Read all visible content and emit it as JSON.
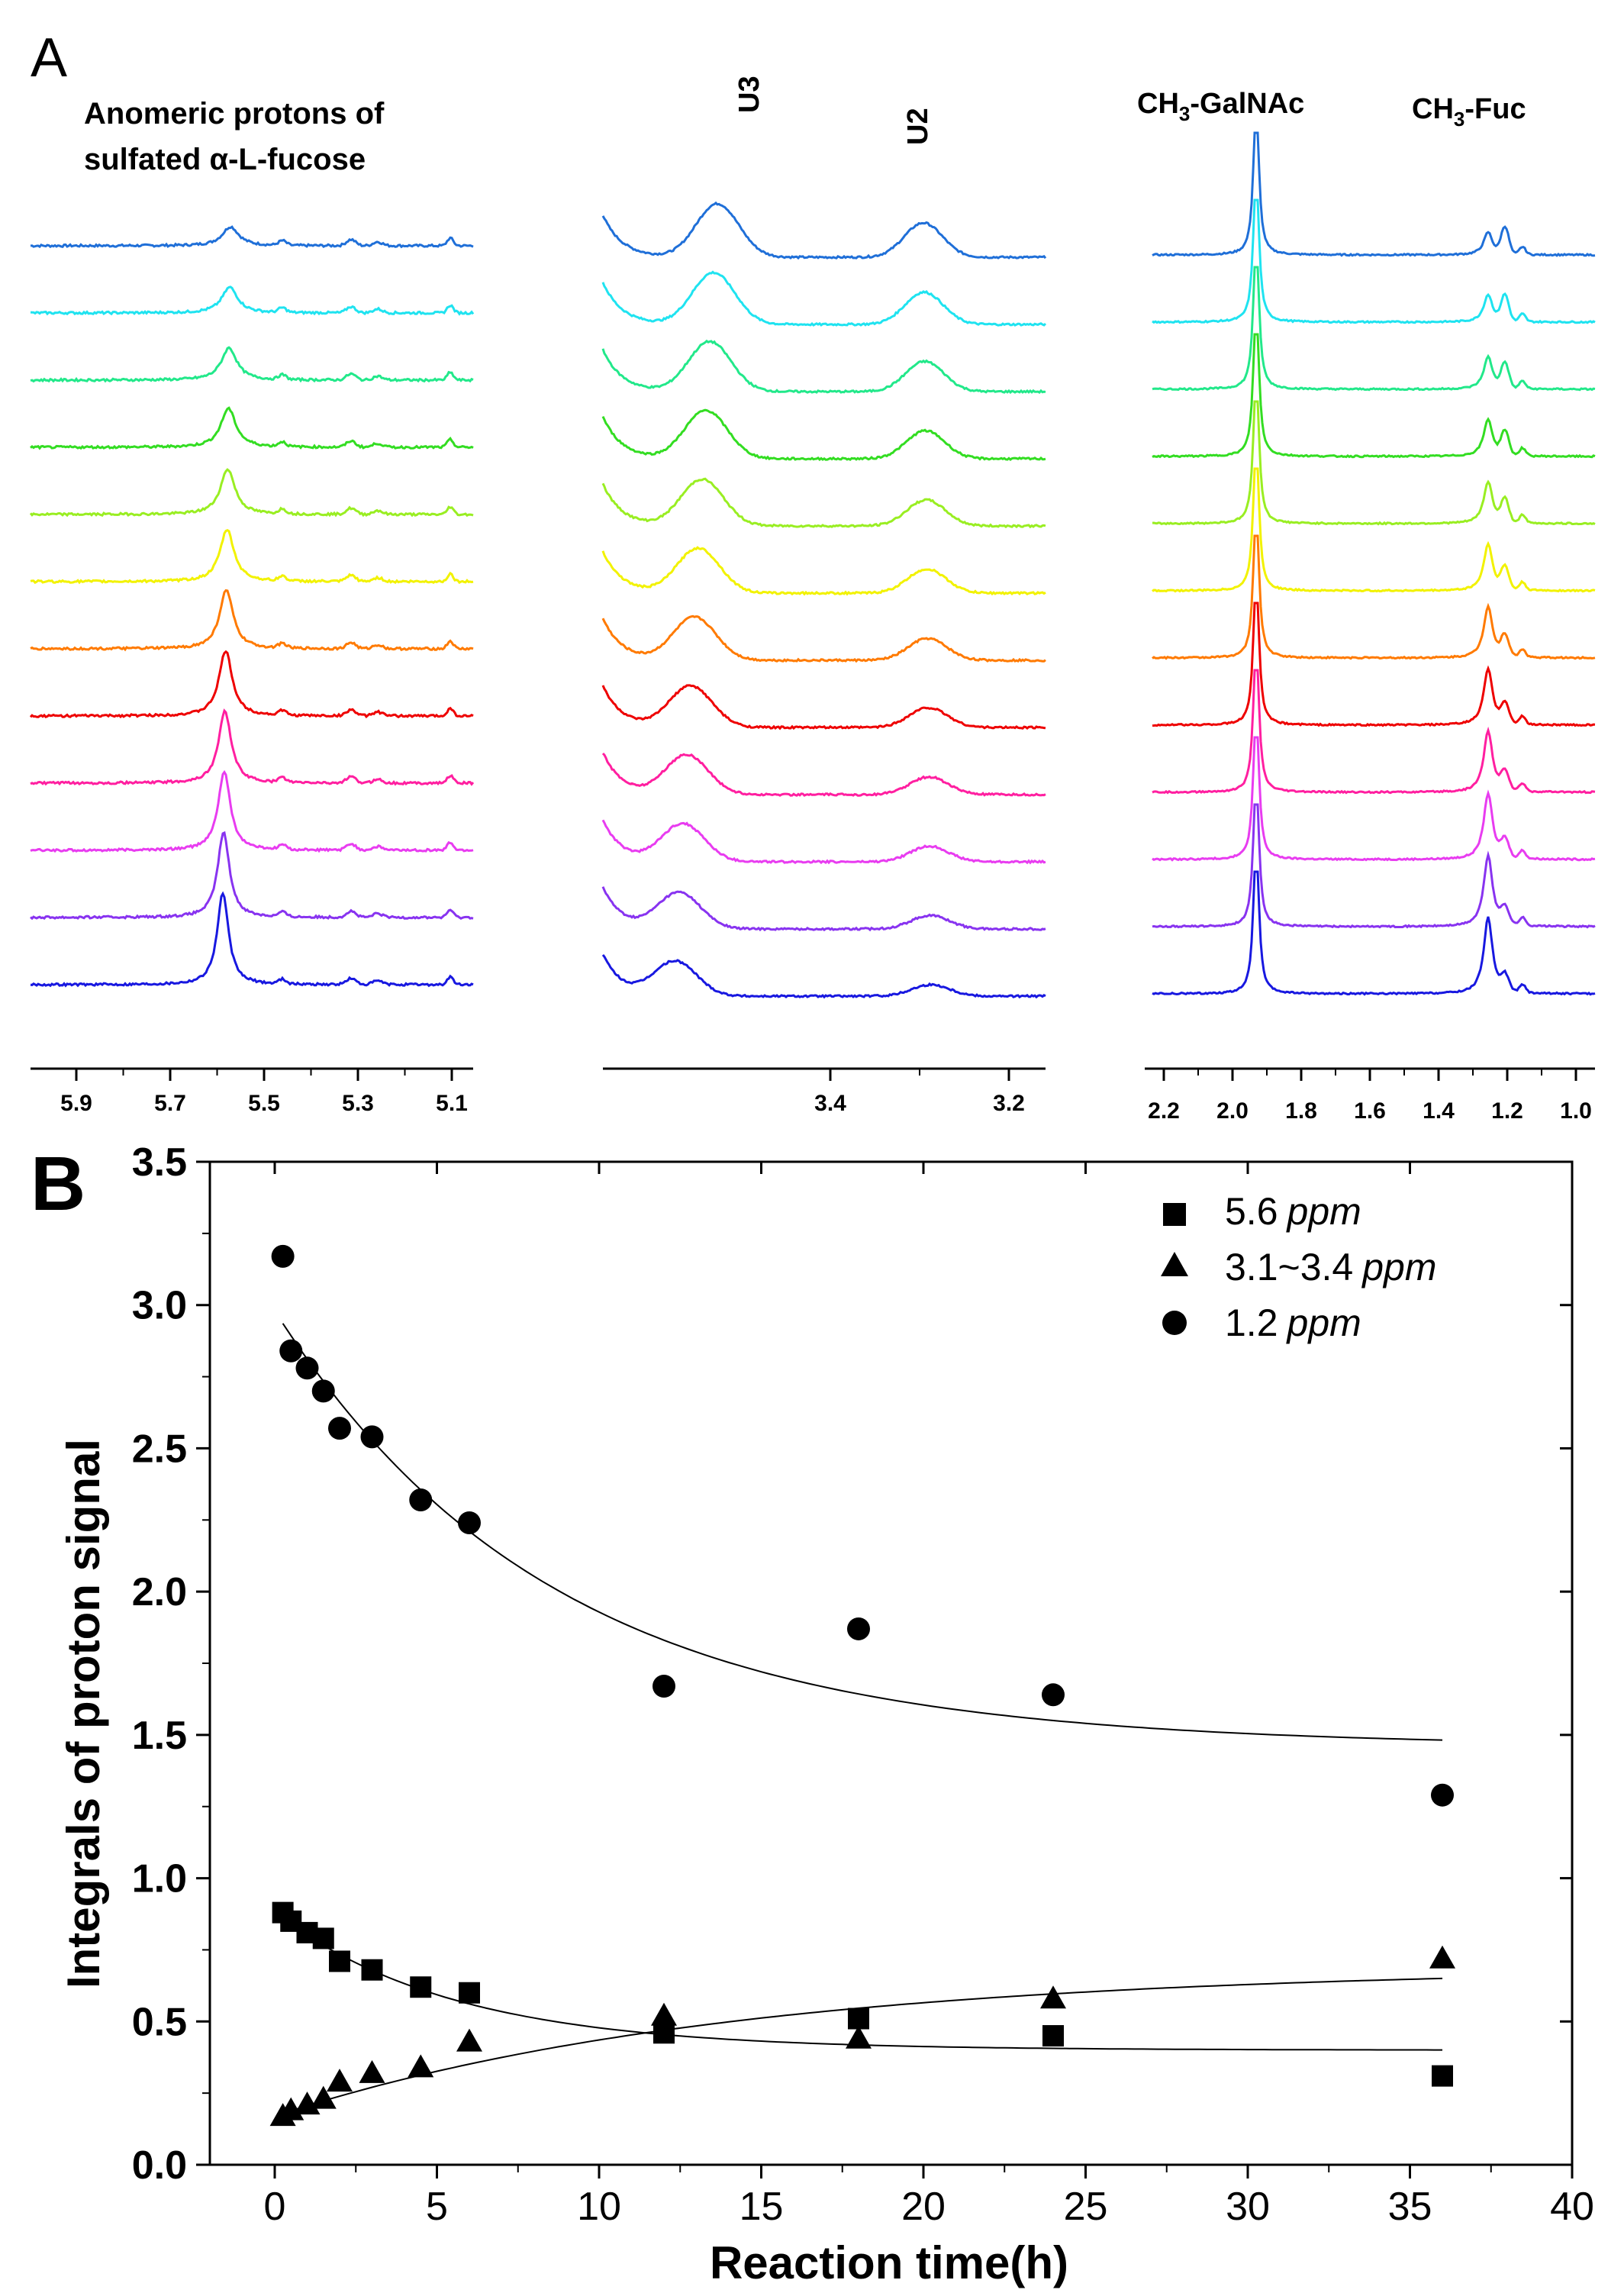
{
  "panel_a": {
    "label": "A",
    "group_left_title_line1": "Anomeric protons of",
    "group_left_title_line2": "sulfated  α-L-fucose",
    "peak_u3": "U3",
    "peak_u2": "U2",
    "peak_galnac_prefix": "CH",
    "peak_galnac_sub": "3",
    "peak_galnac_suffix": "-GalNAc",
    "peak_fuc_prefix": "CH",
    "peak_fuc_sub": "3",
    "peak_fuc_suffix": "-Fuc",
    "axis_left_ticks": [
      "5.9",
      "5.7",
      "5.5",
      "5.3",
      "5.1"
    ],
    "axis_mid_ticks": [
      "3.4",
      "3.2"
    ],
    "axis_right_ticks": [
      "2.2",
      "2.0",
      "1.8",
      "1.6",
      "1.4",
      "1.2",
      "1.0"
    ],
    "spectrum_colors": [
      "#1f6fd8",
      "#1fe3f0",
      "#22e88a",
      "#33dd22",
      "#99ee22",
      "#f2f200",
      "#ff7a00",
      "#ee0000",
      "#ff1fa0",
      "#e83cf0",
      "#8833f0",
      "#1818e0"
    ]
  },
  "panel_b": {
    "label": "B"
  },
  "chart_data": {
    "type": "scatter",
    "xlabel": "Reaction time(h)",
    "ylabel": "Integrals of proton signal",
    "xlim": [
      -2,
      40
    ],
    "ylim": [
      0.0,
      3.5
    ],
    "x_ticks": [
      "0",
      "5",
      "10",
      "15",
      "20",
      "25",
      "30",
      "35",
      "40"
    ],
    "y_ticks": [
      "0.0",
      "0.5",
      "1.0",
      "1.5",
      "2.0",
      "2.5",
      "3.0",
      "3.5"
    ],
    "legend_position": "top-right",
    "series": [
      {
        "name": "5.6",
        "unit": "ppm",
        "marker": "square",
        "x": [
          0.25,
          0.5,
          1,
          1.5,
          2,
          3,
          4.5,
          6,
          12,
          18,
          24,
          36
        ],
        "y": [
          0.88,
          0.85,
          0.81,
          0.79,
          0.71,
          0.68,
          0.62,
          0.6,
          0.46,
          0.51,
          0.45,
          0.31
        ],
        "fit": {
          "y0": 0.4,
          "a": 0.48,
          "tau": 5.5
        }
      },
      {
        "name": "3.1~3.4",
        "unit": "ppm",
        "marker": "triangle",
        "x": [
          0.25,
          0.5,
          1,
          1.5,
          2,
          3,
          4.5,
          6,
          12,
          18,
          24,
          36
        ],
        "y": [
          0.17,
          0.19,
          0.21,
          0.23,
          0.29,
          0.32,
          0.34,
          0.43,
          0.52,
          0.44,
          0.58,
          0.72
        ],
        "fit": {
          "y0": 0.69,
          "a": -0.52,
          "tau": 14
        }
      },
      {
        "name": "1.2",
        "unit": "ppm",
        "marker": "circle",
        "x": [
          0.25,
          0.5,
          1,
          1.5,
          2,
          3,
          4.5,
          6,
          12,
          18,
          24,
          36
        ],
        "y": [
          3.17,
          2.84,
          2.78,
          2.7,
          2.57,
          2.54,
          2.32,
          2.24,
          1.67,
          1.87,
          1.64,
          1.29
        ],
        "fit": {
          "y0": 1.46,
          "a": 1.52,
          "tau": 8.5
        }
      }
    ]
  }
}
